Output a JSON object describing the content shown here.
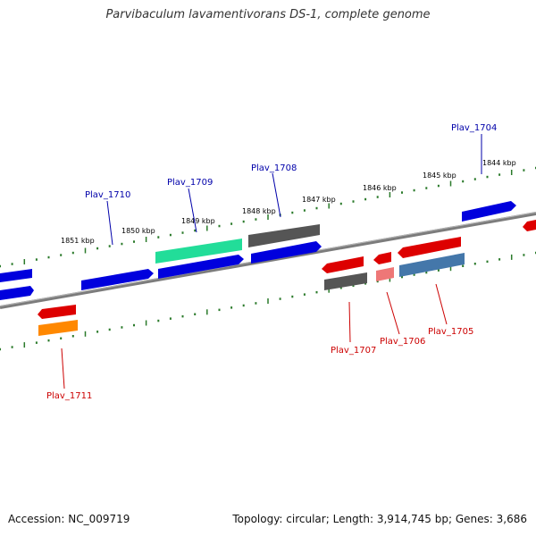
{
  "title": "Parvibaculum lavamentivorans DS-1, complete genome",
  "footer": {
    "accession_label": "Accession:",
    "accession": "NC_009719",
    "topology_label": "Topology:",
    "topology": "circular",
    "length_label": "Length:",
    "length": "3,914,745 bp",
    "genes_label": "Genes:",
    "genes": "3,686"
  },
  "colors": {
    "forward_label": "#0000aa",
    "reverse_label": "#cc0000",
    "backbone": "#808080",
    "ticks": "#2a7a2a"
  },
  "scale_labels": [
    "1851 kbp",
    "1850 kbp",
    "1849 kbp",
    "1848 kbp",
    "1847 kbp",
    "1846 kbp",
    "1845 kbp",
    "1844 kbp"
  ],
  "gene_labels": {
    "Plav_1704": "Plav_1704",
    "Plav_1705": "Plav_1705",
    "Plav_1706": "Plav_1706",
    "Plav_1707": "Plav_1707",
    "Plav_1708": "Plav_1708",
    "Plav_1709": "Plav_1709",
    "Plav_1710": "Plav_1710",
    "Plav_1711": "Plav_1711"
  }
}
